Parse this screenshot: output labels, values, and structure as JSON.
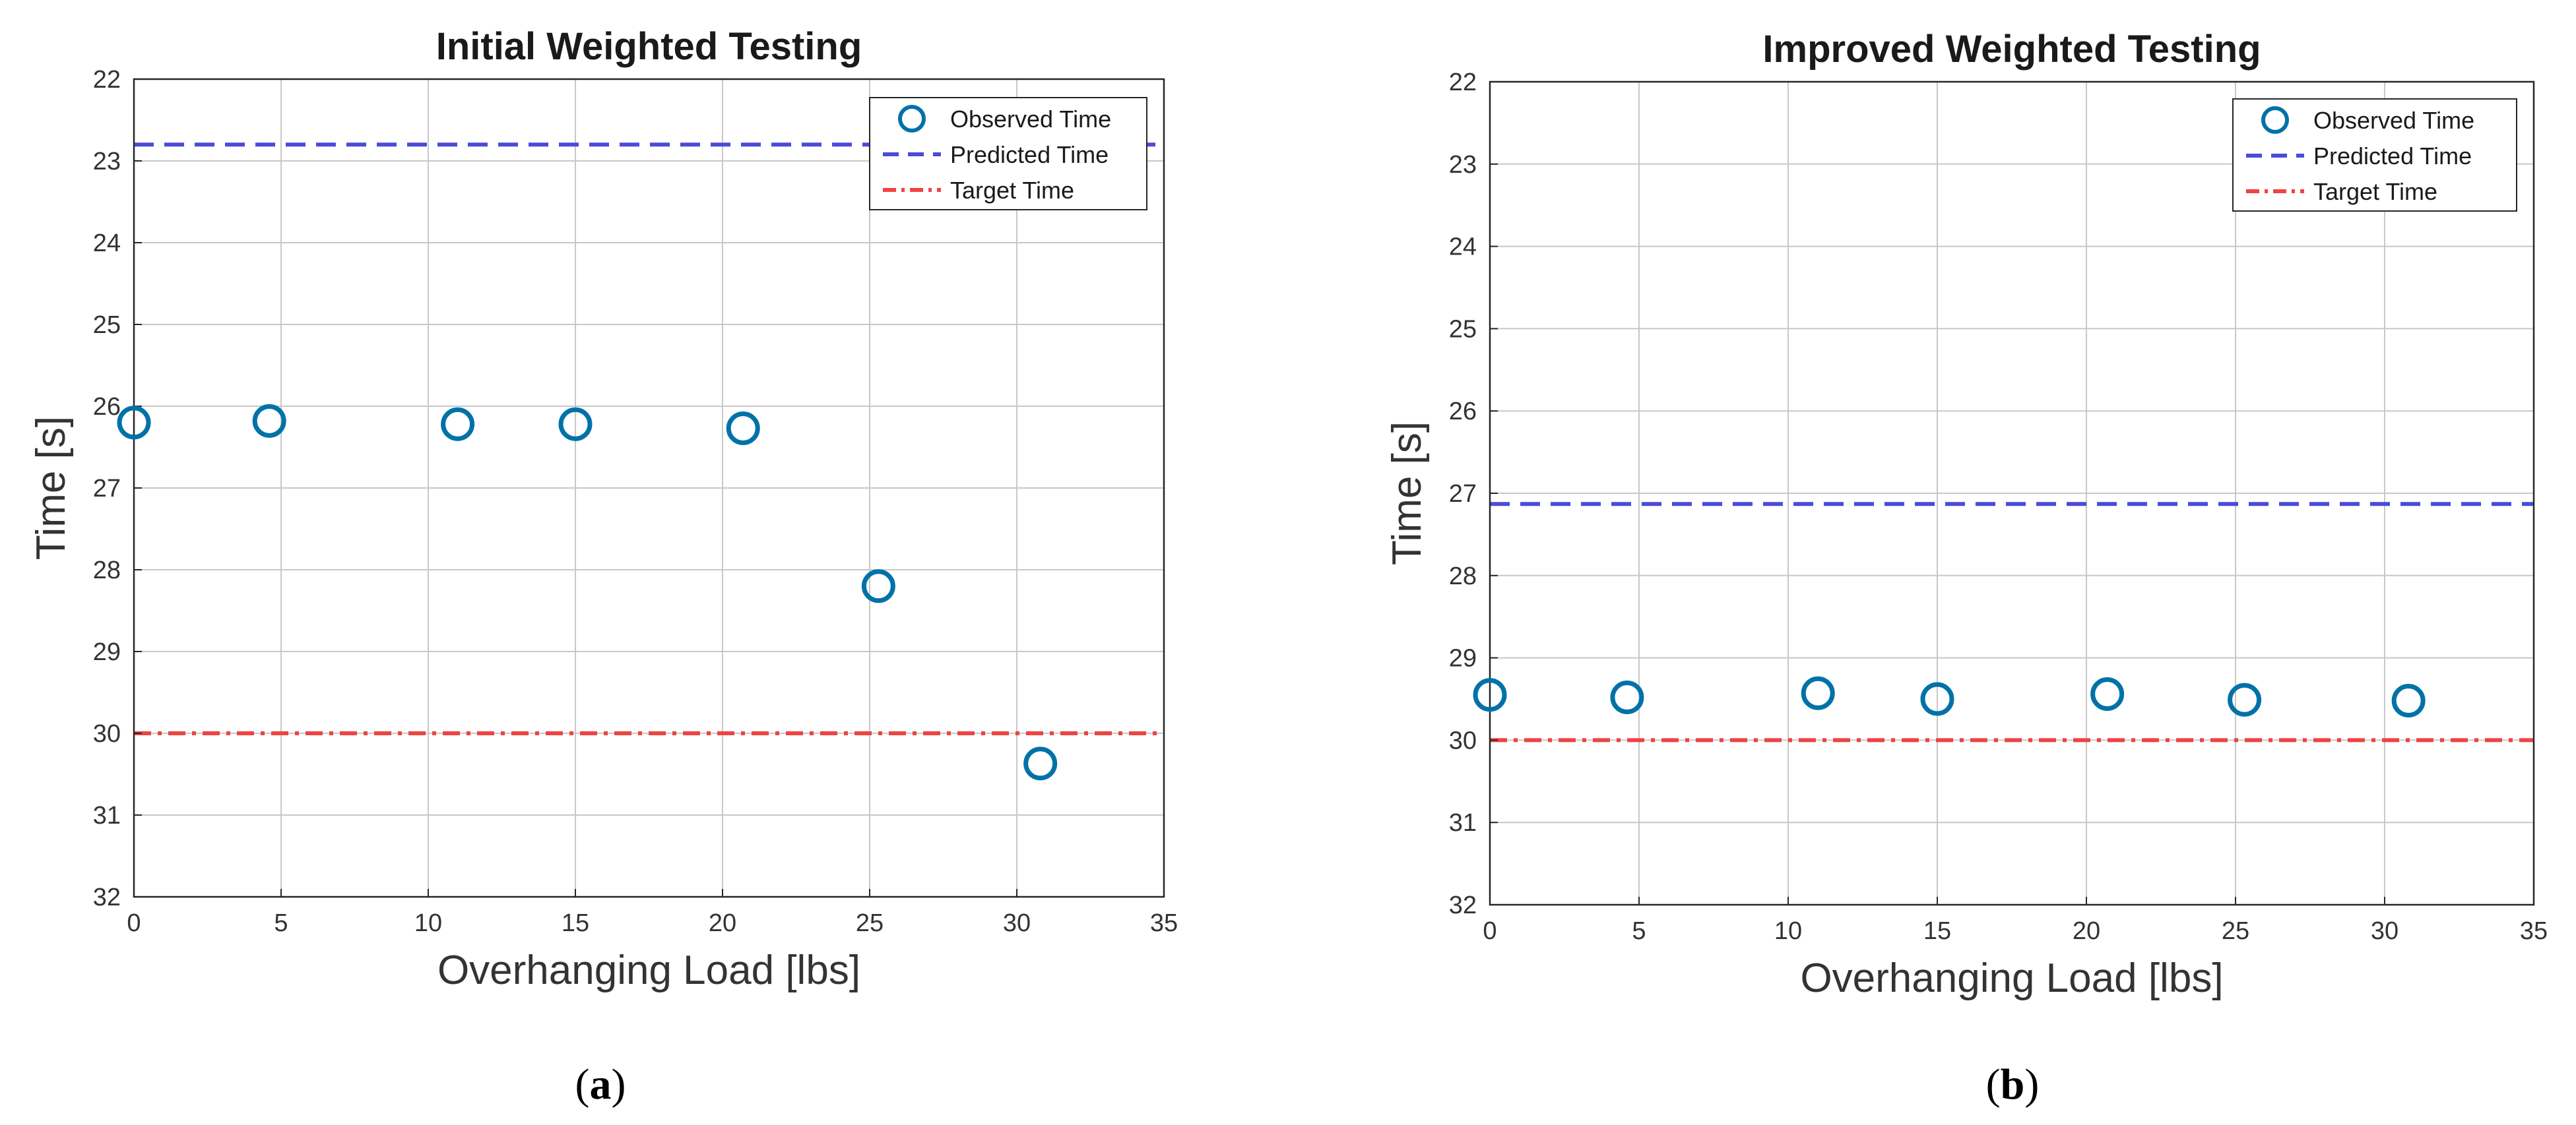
{
  "chart_data": [
    {
      "type": "scatter",
      "panel_label": "a",
      "title": "Initial Weighted Testing",
      "xlabel": "Overhanging Load [lbs]",
      "ylabel": "Time [s]",
      "xlim": [
        0,
        35
      ],
      "ylim": [
        22,
        32
      ],
      "y_reversed": true,
      "xticks": [
        0,
        5,
        10,
        15,
        20,
        25,
        30,
        35
      ],
      "yticks": [
        22,
        23,
        24,
        25,
        26,
        27,
        28,
        29,
        30,
        31,
        32
      ],
      "grid": true,
      "legend_position": "top-right",
      "legend": [
        "Observed Time",
        "Predicted Time",
        "Target Time"
      ],
      "series": [
        {
          "name": "Observed Time",
          "kind": "points",
          "color": "#0072a8",
          "x": [
            0,
            4.6,
            11,
            15,
            20.7,
            25.3,
            30.8
          ],
          "y": [
            26.2,
            26.18,
            26.22,
            26.22,
            26.27,
            28.2,
            30.37
          ]
        },
        {
          "name": "Predicted Time",
          "kind": "hline",
          "color": "#4b4bd8",
          "style": "dashed",
          "y": 22.8
        },
        {
          "name": "Target Time",
          "kind": "hline",
          "color": "#ee4444",
          "style": "dashdot",
          "y": 30.0
        }
      ]
    },
    {
      "type": "scatter",
      "panel_label": "b",
      "title": "Improved Weighted Testing",
      "xlabel": "Overhanging Load [lbs]",
      "ylabel": "Time [s]",
      "xlim": [
        0,
        35
      ],
      "ylim": [
        22,
        32
      ],
      "y_reversed": true,
      "xticks": [
        0,
        5,
        10,
        15,
        20,
        25,
        30,
        35
      ],
      "yticks": [
        22,
        23,
        24,
        25,
        26,
        27,
        28,
        29,
        30,
        31,
        32
      ],
      "grid": true,
      "legend_position": "top-right",
      "legend": [
        "Observed Time",
        "Predicted Time",
        "Target Time"
      ],
      "series": [
        {
          "name": "Observed Time",
          "kind": "points",
          "color": "#0072a8",
          "x": [
            0,
            4.6,
            11,
            15,
            20.7,
            25.3,
            30.8
          ],
          "y": [
            29.45,
            29.48,
            29.43,
            29.5,
            29.44,
            29.51,
            29.52
          ]
        },
        {
          "name": "Predicted Time",
          "kind": "hline",
          "color": "#4b4bd8",
          "style": "dashed",
          "y": 27.13
        },
        {
          "name": "Target Time",
          "kind": "hline",
          "color": "#ee4444",
          "style": "dashdot",
          "y": 30.0
        }
      ]
    }
  ]
}
